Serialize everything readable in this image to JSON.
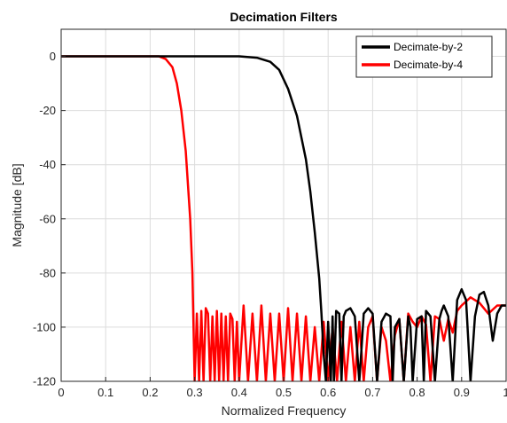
{
  "chart_data": {
    "type": "line",
    "title": "Decimation Filters",
    "xlabel": "Normalized Frequency",
    "ylabel": "Magnitude [dB]",
    "xlim": [
      0,
      1
    ],
    "ylim": [
      -120,
      10
    ],
    "xticks": [
      0,
      0.1,
      0.2,
      0.3,
      0.4,
      0.5,
      0.6,
      0.7,
      0.8,
      0.9,
      1
    ],
    "xtick_labels": [
      "0",
      "0.1",
      "0.2",
      "0.3",
      "0.4",
      "0.5",
      "0.6",
      "0.7",
      "0.8",
      "0.9",
      "1"
    ],
    "yticks": [
      -120,
      -100,
      -80,
      -60,
      -40,
      -20,
      0
    ],
    "ytick_labels": [
      "-120",
      "-100",
      "-80",
      "-60",
      "-40",
      "-20",
      "0"
    ],
    "grid": true,
    "legend_position": "top-right",
    "series": [
      {
        "name": "Decimate-by-2",
        "color": "#000000",
        "x": [
          0,
          0.1,
          0.2,
          0.3,
          0.4,
          0.44,
          0.47,
          0.49,
          0.51,
          0.53,
          0.55,
          0.56,
          0.57,
          0.58,
          0.585,
          0.59,
          0.595,
          0.6,
          0.603,
          0.606,
          0.61,
          0.613,
          0.618,
          0.625,
          0.63,
          0.635,
          0.64,
          0.65,
          0.66,
          0.67,
          0.675,
          0.68,
          0.69,
          0.7,
          0.71,
          0.72,
          0.73,
          0.74,
          0.745,
          0.75,
          0.76,
          0.77,
          0.78,
          0.785,
          0.79,
          0.8,
          0.81,
          0.815,
          0.82,
          0.83,
          0.84,
          0.85,
          0.855,
          0.86,
          0.87,
          0.88,
          0.89,
          0.895,
          0.9,
          0.91,
          0.92,
          0.93,
          0.94,
          0.95,
          0.96,
          0.97,
          0.98,
          0.99,
          1.0
        ],
        "values": [
          0,
          0,
          0,
          0,
          0,
          -0.5,
          -2,
          -5,
          -12,
          -22,
          -38,
          -50,
          -65,
          -82,
          -95,
          -110,
          -120,
          -98,
          -108,
          -120,
          -96,
          -120,
          -94,
          -95,
          -120,
          -96,
          -94,
          -93,
          -96,
          -120,
          -108,
          -95,
          -93,
          -95,
          -120,
          -98,
          -95,
          -96,
          -120,
          -100,
          -97,
          -120,
          -96,
          -100,
          -120,
          -97,
          -96,
          -120,
          -94,
          -96,
          -120,
          -97,
          -94,
          -92,
          -96,
          -120,
          -90,
          -88,
          -86,
          -90,
          -120,
          -96,
          -88,
          -87,
          -92,
          -105,
          -95,
          -92,
          -92
        ],
        "lw": 2.5
      },
      {
        "name": "Decimate-by-4",
        "color": "#ff0000",
        "x": [
          0,
          0.1,
          0.2,
          0.22,
          0.235,
          0.25,
          0.26,
          0.27,
          0.28,
          0.29,
          0.295,
          0.3,
          0.305,
          0.31,
          0.315,
          0.32,
          0.325,
          0.33,
          0.335,
          0.34,
          0.345,
          0.35,
          0.355,
          0.36,
          0.365,
          0.37,
          0.375,
          0.38,
          0.385,
          0.39,
          0.395,
          0.4,
          0.41,
          0.42,
          0.43,
          0.44,
          0.45,
          0.46,
          0.47,
          0.48,
          0.49,
          0.5,
          0.51,
          0.52,
          0.53,
          0.54,
          0.55,
          0.56,
          0.57,
          0.58,
          0.59,
          0.6,
          0.61,
          0.62,
          0.63,
          0.64,
          0.65,
          0.66,
          0.67,
          0.68,
          0.69,
          0.7,
          0.71,
          0.72,
          0.73,
          0.74,
          0.75,
          0.76,
          0.77,
          0.78,
          0.79,
          0.8,
          0.81,
          0.82,
          0.83,
          0.84,
          0.85,
          0.86,
          0.87,
          0.88,
          0.89,
          0.9,
          0.92,
          0.94,
          0.96,
          0.98,
          1.0
        ],
        "values": [
          0,
          0,
          0,
          0,
          -1,
          -4,
          -10,
          -20,
          -35,
          -60,
          -80,
          -120,
          -95,
          -120,
          -94,
          -120,
          -93,
          -95,
          -120,
          -96,
          -120,
          -94,
          -120,
          -95,
          -120,
          -96,
          -120,
          -95,
          -97,
          -120,
          -98,
          -120,
          -92,
          -120,
          -95,
          -120,
          -92,
          -120,
          -95,
          -120,
          -95,
          -120,
          -93,
          -120,
          -95,
          -120,
          -96,
          -120,
          -100,
          -120,
          -98,
          -120,
          -100,
          -120,
          -98,
          -120,
          -100,
          -120,
          -98,
          -120,
          -100,
          -96,
          -120,
          -100,
          -105,
          -120,
          -103,
          -97,
          -120,
          -95,
          -98,
          -100,
          -96,
          -99,
          -120,
          -96,
          -97,
          -105,
          -97,
          -102,
          -94,
          -92,
          -89,
          -91,
          -95,
          -92,
          -92
        ],
        "lw": 2.5
      }
    ]
  }
}
